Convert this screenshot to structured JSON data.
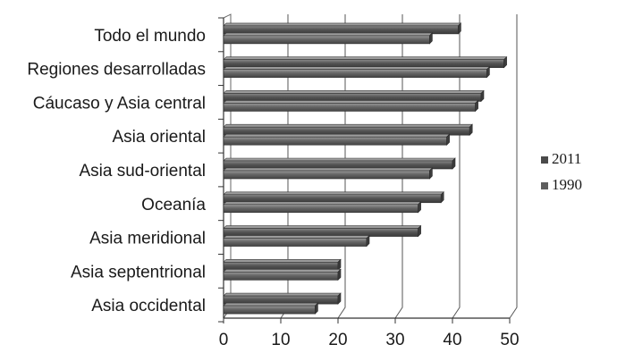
{
  "chart_data": {
    "type": "bar",
    "orientation": "horizontal",
    "style": "3d",
    "categories": [
      "Todo el mundo",
      "Regiones desarrolladas",
      "Cáucaso y Asia central",
      "Asia oriental",
      "Asia sud-oriental",
      "Oceanía",
      "Asia meridional",
      "Asia septentrional",
      "Asia occidental"
    ],
    "series": [
      {
        "name": "2011",
        "color": "#4a4a4a",
        "values": [
          41,
          49,
          45,
          43,
          40,
          38,
          34,
          20,
          20
        ]
      },
      {
        "name": "1990",
        "color": "#5e5e5e",
        "values": [
          36,
          46,
          44,
          39,
          36,
          34,
          25,
          20,
          16
        ]
      }
    ],
    "xlim": [
      0,
      50
    ],
    "x_ticks": [
      0,
      10,
      20,
      30,
      40,
      50
    ],
    "grid": true,
    "legend": {
      "placement": "right",
      "entries": [
        "2011",
        "1990"
      ]
    },
    "title": "",
    "xlabel": "",
    "ylabel": ""
  }
}
